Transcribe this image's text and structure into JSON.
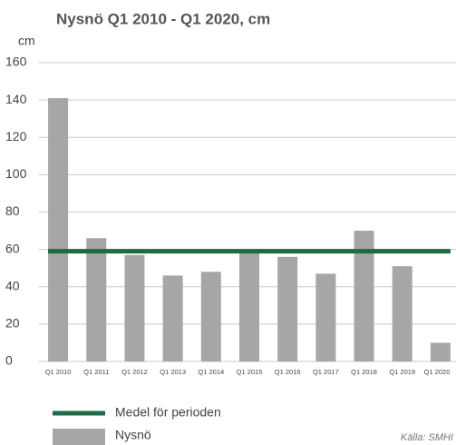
{
  "chart_data": {
    "type": "bar",
    "title": "Nysnö Q1 2010 - Q1 2020, cm",
    "y_label": "cm",
    "categories": [
      "Q1 2010",
      "Q1 2011",
      "Q1 2012",
      "Q1 2013",
      "Q1 2014",
      "Q1 2015",
      "Q1 2016",
      "Q1 2017",
      "Q1 2018",
      "Q1 2019",
      "Q1 2020"
    ],
    "series": [
      {
        "name": "Nysnö",
        "color": "#a6a6a6",
        "values": [
          141,
          66,
          57,
          46,
          48,
          58,
          56,
          47,
          70,
          51,
          10
        ]
      }
    ],
    "mean": {
      "name": "Medel för perioden",
      "color": "#1b6b46",
      "value": 59
    },
    "ylim": [
      0,
      160
    ],
    "yticks": [
      0,
      20,
      40,
      60,
      80,
      100,
      120,
      140,
      160
    ],
    "grid": true,
    "source": "Källa: SMHI"
  }
}
